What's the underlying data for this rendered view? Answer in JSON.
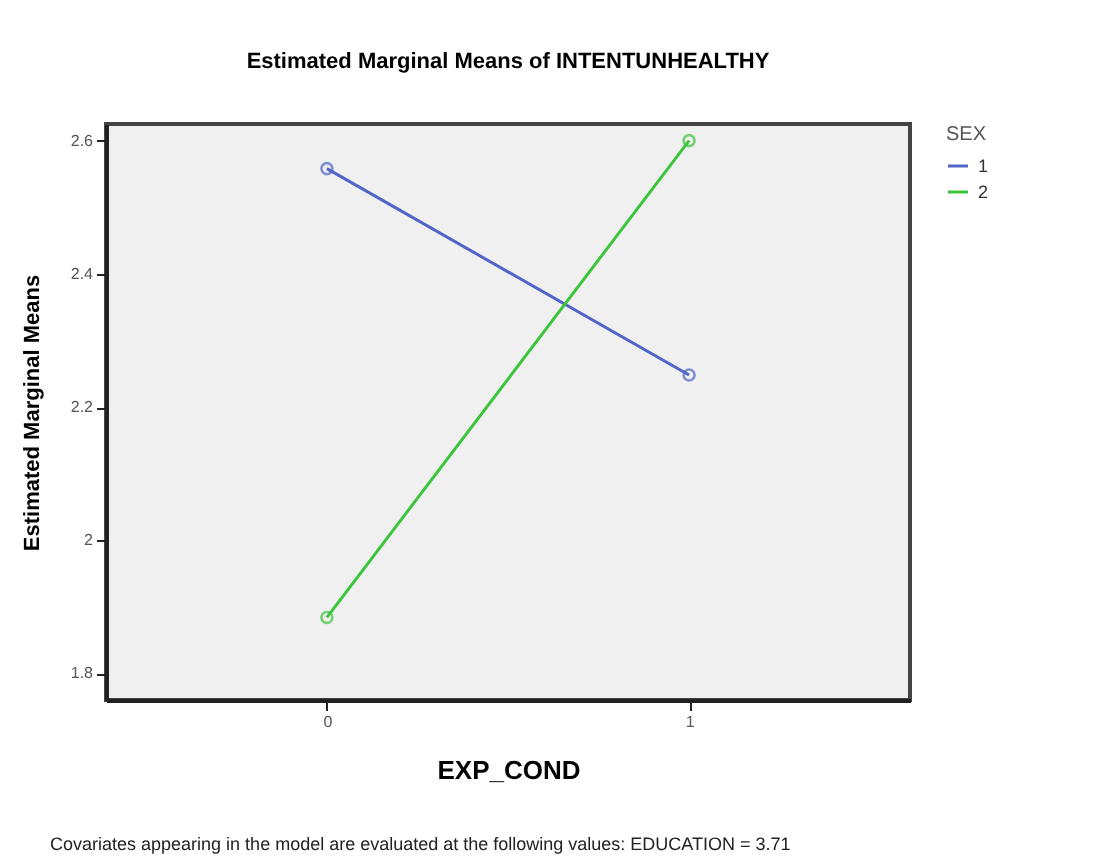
{
  "chart_data": {
    "type": "line",
    "title": "Estimated Marginal Means of INTENTUNHEALTHY",
    "xlabel": "EXP_COND",
    "ylabel": "Estimated Marginal Means",
    "x": [
      0,
      1
    ],
    "series": [
      {
        "name": "1",
        "color": "#5264c8",
        "values": [
          2.558,
          2.248
        ]
      },
      {
        "name": "2",
        "color": "#3cc43c",
        "values": [
          1.884,
          2.6
        ]
      }
    ],
    "xlim": [
      -0.61,
      1.61
    ],
    "xticks": [
      0,
      1
    ],
    "ylim": [
      1.76,
      2.625
    ],
    "yticks": [
      1.8,
      2,
      2.2,
      2.4,
      2.6
    ],
    "legend_title": "SEX",
    "legend": "top right",
    "marker": "circle",
    "grid": false,
    "annotations": [
      "Covariates appearing in the model are evaluated at the following values: EDUCATION = 3.71"
    ]
  }
}
